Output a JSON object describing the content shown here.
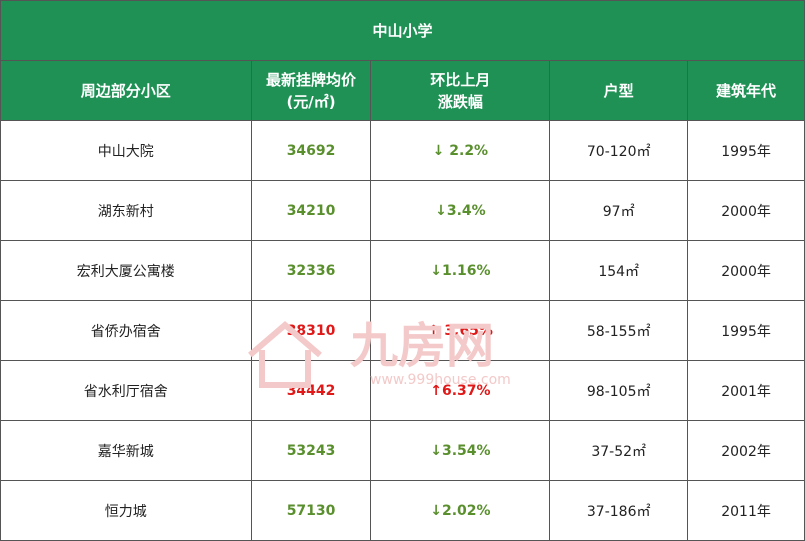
{
  "title": "中山小学",
  "headers": [
    "周边部分小区",
    "最新挂牌均价\n(元/㎡)",
    "环比上月\n涨跌幅",
    "户型",
    "建筑年代"
  ],
  "rows": [
    {
      "name": "中山大院",
      "price": "34692",
      "change": "↓ 2.2%",
      "trend": "down",
      "layout": "70-120㎡",
      "year": "1995年"
    },
    {
      "name": "湖东新村",
      "price": "34210",
      "change": "↓3.4%",
      "trend": "down",
      "layout": "97㎡",
      "year": "2000年"
    },
    {
      "name": "宏利大厦公寓楼",
      "price": "32336",
      "change": "↓1.16%",
      "trend": "down",
      "layout": "154㎡",
      "year": "2000年"
    },
    {
      "name": "省侨办宿舍",
      "price": "38310",
      "change": "↑ 3.65%",
      "trend": "up",
      "layout": "58-155㎡",
      "year": "1995年"
    },
    {
      "name": "省水利厅宿舍",
      "price": "34442",
      "change": "↑6.37%",
      "trend": "up",
      "layout": "98-105㎡",
      "year": "2001年"
    },
    {
      "name": "嘉华新城",
      "price": "53243",
      "change": "↓3.54%",
      "trend": "down",
      "layout": "37-52㎡",
      "year": "2002年"
    },
    {
      "name": "恒力城",
      "price": "57130",
      "change": "↓2.02%",
      "trend": "down",
      "layout": "37-186㎡",
      "year": "2011年"
    }
  ],
  "watermark": {
    "brand": "九房网",
    "url": "www.999house.com"
  },
  "colors": {
    "header_bg": "#1f9155",
    "down": "#5a8f2e",
    "up": "#e01818",
    "watermark": "#f3c9c9"
  }
}
